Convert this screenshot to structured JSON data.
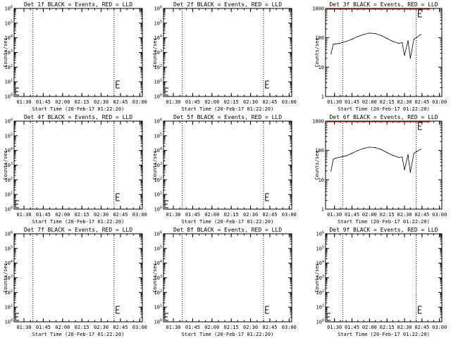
{
  "chart_data": [
    {
      "type": "line",
      "title": "Det 1f BLACK = Events, RED = LLD",
      "xlabel": "Start Time (20-Feb-17 01:22:20)",
      "ylabel": "Counts/sec",
      "yscale": "log",
      "ylim": [
        1,
        1000000
      ],
      "ytick_labels": [
        "10^0",
        "10^1",
        "10^2",
        "10^3",
        "10^4",
        "10^5",
        "10^6"
      ],
      "x_tick_labels": [
        "01:30",
        "01:45",
        "02:00",
        "02:15",
        "02:30",
        "02:45",
        "03:00"
      ],
      "xlim": [
        "01:22:20",
        "03:02:00"
      ],
      "vlines": [
        "01:37",
        "02:40"
      ],
      "series": []
    },
    {
      "type": "line",
      "title": "Det 2f BLACK = Events, RED = LLD",
      "xlabel": "Start Time (20-Feb-17 01:22:20)",
      "ylabel": "Counts/sec",
      "yscale": "log",
      "ylim": [
        1,
        1000000
      ],
      "ytick_labels": [
        "10^0",
        "10^1",
        "10^2",
        "10^3",
        "10^4",
        "10^5",
        "10^6"
      ],
      "x_tick_labels": [
        "01:30",
        "01:45",
        "02:00",
        "02:15",
        "02:30",
        "02:45",
        "03:00"
      ],
      "xlim": [
        "01:22:20",
        "03:02:00"
      ],
      "vlines": [
        "01:37",
        "02:40"
      ],
      "series": []
    },
    {
      "type": "line",
      "title": "Det 3f BLACK = Events, RED = LLD",
      "xlabel": "Start Time (20-Feb-17 01:22:20)",
      "ylabel": "Counts/sec",
      "yscale": "log",
      "ylim": [
        1,
        1000
      ],
      "ytick_labels": [
        "1",
        "10",
        "100",
        "1000"
      ],
      "x_tick_labels": [
        "01:30",
        "01:45",
        "02:00",
        "02:15",
        "02:30",
        "02:45",
        "03:00"
      ],
      "xlim": [
        "01:22:20",
        "03:02:00"
      ],
      "vlines": [
        "01:37",
        "02:40"
      ],
      "series": [
        {
          "x": [
            "01:27",
            "01:29",
            "01:31",
            "01:34",
            "01:37",
            "01:40",
            "01:45",
            "01:50",
            "01:55",
            "02:00",
            "02:05",
            "02:10",
            "02:15",
            "02:20",
            "02:25",
            "02:28",
            "02:30",
            "02:33",
            "02:35",
            "02:38",
            "02:40",
            "02:44"
          ],
          "y": [
            28,
            60,
            62,
            64,
            70,
            75,
            90,
            110,
            130,
            145,
            140,
            120,
            95,
            75,
            65,
            68,
            25,
            80,
            20,
            90,
            100,
            130
          ]
        }
      ]
    },
    {
      "type": "line",
      "title": "Det 4f BLACK = Events, RED = LLD",
      "xlabel": "Start Time (20-Feb-17 01:22:20)",
      "ylabel": "Counts/sec",
      "yscale": "log",
      "ylim": [
        1,
        1000000
      ],
      "ytick_labels": [
        "10^0",
        "10^1",
        "10^2",
        "10^3",
        "10^4",
        "10^5",
        "10^6"
      ],
      "x_tick_labels": [
        "01:30",
        "01:45",
        "02:00",
        "02:15",
        "02:30",
        "02:45",
        "03:00"
      ],
      "xlim": [
        "01:22:20",
        "03:02:00"
      ],
      "vlines": [
        "01:37",
        "02:40"
      ],
      "series": []
    },
    {
      "type": "line",
      "title": "Det 5f BLACK = Events, RED = LLD",
      "xlabel": "Start Time (20-Feb-17 01:22:20)",
      "ylabel": "Counts/sec",
      "yscale": "log",
      "ylim": [
        1,
        1000000
      ],
      "ytick_labels": [
        "10^0",
        "10^1",
        "10^2",
        "10^3",
        "10^4",
        "10^5",
        "10^6"
      ],
      "x_tick_labels": [
        "01:30",
        "01:45",
        "02:00",
        "02:15",
        "02:30",
        "02:45",
        "03:00"
      ],
      "xlim": [
        "01:22:20",
        "03:02:00"
      ],
      "vlines": [
        "01:37",
        "02:40"
      ],
      "series": []
    },
    {
      "type": "line",
      "title": "Det 6f BLACK = Events, RED = LLD",
      "xlabel": "Start Time (20-Feb-17 01:22:20)",
      "ylabel": "Counts/sec",
      "yscale": "log",
      "ylim": [
        1,
        1000
      ],
      "ytick_labels": [
        "1",
        "10",
        "100",
        "1000"
      ],
      "x_tick_labels": [
        "01:30",
        "01:45",
        "02:00",
        "02:15",
        "02:30",
        "02:45",
        "03:00"
      ],
      "xlim": [
        "01:22:20",
        "03:02:00"
      ],
      "vlines": [
        "01:37",
        "02:40"
      ],
      "series": [
        {
          "x": [
            "01:27",
            "01:29",
            "01:31",
            "01:34",
            "01:37",
            "01:40",
            "01:45",
            "01:50",
            "01:55",
            "02:00",
            "02:05",
            "02:10",
            "02:15",
            "02:20",
            "02:25",
            "02:28",
            "02:30",
            "02:33",
            "02:35",
            "02:38",
            "02:40",
            "02:44"
          ],
          "y": [
            20,
            50,
            55,
            58,
            62,
            66,
            80,
            100,
            118,
            130,
            125,
            108,
            85,
            68,
            58,
            60,
            22,
            72,
            18,
            80,
            90,
            110
          ]
        }
      ]
    },
    {
      "type": "line",
      "title": "Det 7f BLACK = Events, RED = LLD",
      "xlabel": "Start Time (20-Feb-17 01:22:20)",
      "ylabel": "Counts/sec",
      "yscale": "log",
      "ylim": [
        1,
        1000000
      ],
      "ytick_labels": [
        "10^0",
        "10^1",
        "10^2",
        "10^3",
        "10^4",
        "10^5",
        "10^6"
      ],
      "x_tick_labels": [
        "01:30",
        "01:45",
        "02:00",
        "02:15",
        "02:30",
        "02:45",
        "03:00"
      ],
      "xlim": [
        "01:22:20",
        "03:02:00"
      ],
      "vlines": [
        "01:37",
        "02:40"
      ],
      "series": []
    },
    {
      "type": "line",
      "title": "Det 8f BLACK = Events, RED = LLD",
      "xlabel": "Start Time (20-Feb-17 01:22:20)",
      "ylabel": "Counts/sec",
      "yscale": "log",
      "ylim": [
        1,
        1000000
      ],
      "ytick_labels": [
        "10^0",
        "10^1",
        "10^2",
        "10^3",
        "10^4",
        "10^5",
        "10^6"
      ],
      "x_tick_labels": [
        "01:30",
        "01:45",
        "02:00",
        "02:15",
        "02:30",
        "02:45",
        "03:00"
      ],
      "xlim": [
        "01:22:20",
        "03:02:00"
      ],
      "vlines": [
        "01:37",
        "02:40"
      ],
      "series": []
    },
    {
      "type": "line",
      "title": "Det 9f BLACK = Events, RED = LLD",
      "xlabel": "Start Time (20-Feb-17 01:22:20)",
      "ylabel": "Counts/sec",
      "yscale": "log",
      "ylim": [
        1,
        1000000
      ],
      "ytick_labels": [
        "10^0",
        "10^1",
        "10^2",
        "10^3",
        "10^4",
        "10^5",
        "10^6"
      ],
      "x_tick_labels": [
        "01:30",
        "01:45",
        "02:00",
        "02:15",
        "02:30",
        "02:45",
        "03:00"
      ],
      "xlim": [
        "01:22:20",
        "03:02:00"
      ],
      "vlines": [
        "01:37",
        "02:40"
      ],
      "series": []
    }
  ],
  "colors": {
    "events": "#000000",
    "lld": "#e00000"
  }
}
